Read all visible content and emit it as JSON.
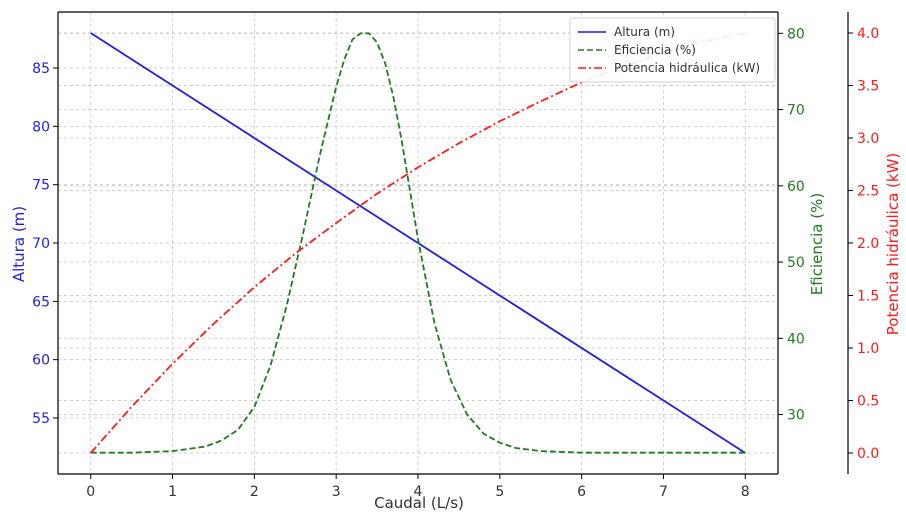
{
  "colors": {
    "altura": "#1f1fe6",
    "eficiencia": "#1e7d1e",
    "potencia": "#ff1a1a",
    "grid": "#cfcfcf",
    "axis": "#000000"
  },
  "chart_data": {
    "type": "line",
    "xlabel": "Caudal (L/s)",
    "x_ticks": [
      0,
      1,
      2,
      3,
      4,
      5,
      6,
      7,
      8
    ],
    "xlim": [
      -0.4,
      8.4
    ],
    "grid": true,
    "legend_position": "top-right",
    "axes": {
      "left": {
        "label": "Altura (m)",
        "ticks": [
          "55",
          "60",
          "65",
          "70",
          "75",
          "80",
          "85"
        ],
        "tick_values": [
          55,
          60,
          65,
          70,
          75,
          80,
          85
        ],
        "ylim": [
          50.2,
          89.8
        ],
        "color": "#1f1fe6"
      },
      "right1": {
        "label": "Eficiencia (%)",
        "ticks": [
          "30",
          "40",
          "50",
          "60",
          "70",
          "80"
        ],
        "tick_values": [
          30,
          40,
          50,
          60,
          70,
          80
        ],
        "ylim": [
          22.2,
          82.8
        ],
        "color": "#1e7d1e"
      },
      "right2": {
        "label": "Potencia hidráulica (kW)",
        "ticks": [
          "0.0",
          "0.5",
          "1.0",
          "1.5",
          "2.0",
          "2.5",
          "3.0",
          "3.5",
          "4.0"
        ],
        "tick_values": [
          0,
          0.5,
          1.0,
          1.5,
          2.0,
          2.5,
          3.0,
          3.5,
          4.0
        ],
        "ylim": [
          -0.2,
          4.2
        ],
        "color": "#ff1a1a"
      }
    },
    "series": [
      {
        "name": "Altura (m)",
        "axis": "left",
        "style": "solid",
        "x": [
          0,
          8
        ],
        "y": [
          88,
          52
        ]
      },
      {
        "name": "Eficiencia (%)",
        "axis": "right1",
        "style": "dashed",
        "x": [
          0,
          0.5,
          1.0,
          1.4,
          1.6,
          1.8,
          2.0,
          2.2,
          2.4,
          2.6,
          2.8,
          3.0,
          3.1,
          3.2,
          3.3,
          3.4,
          3.5,
          3.6,
          3.7,
          3.8,
          3.9,
          4.0,
          4.2,
          4.4,
          4.6,
          4.8,
          5.0,
          5.2,
          5.5,
          6.0,
          7.0,
          8.0
        ],
        "y": [
          25,
          25,
          25.2,
          25.8,
          26.6,
          28.0,
          31.0,
          36.5,
          44.5,
          54.0,
          64.0,
          73.0,
          76.6,
          79.2,
          80.0,
          80.0,
          78.8,
          76.0,
          71.6,
          66.0,
          59.5,
          53.0,
          42.0,
          34.5,
          30.0,
          27.5,
          26.3,
          25.6,
          25.2,
          25.0,
          25.0,
          25.0
        ]
      },
      {
        "name": "Potencia hidráulica (kW)",
        "axis": "right2",
        "style": "dashdot",
        "x": [
          0,
          0.5,
          1.0,
          1.5,
          2.0,
          2.5,
          3.0,
          3.5,
          4.0,
          4.5,
          5.0,
          5.5,
          6.0,
          6.5,
          7.0,
          7.5,
          8.0
        ],
        "y": [
          0.0,
          0.44,
          0.85,
          1.23,
          1.58,
          1.9,
          2.19,
          2.47,
          2.72,
          2.95,
          3.16,
          3.35,
          3.53,
          3.68,
          3.81,
          3.92,
          4.0
        ]
      }
    ]
  }
}
